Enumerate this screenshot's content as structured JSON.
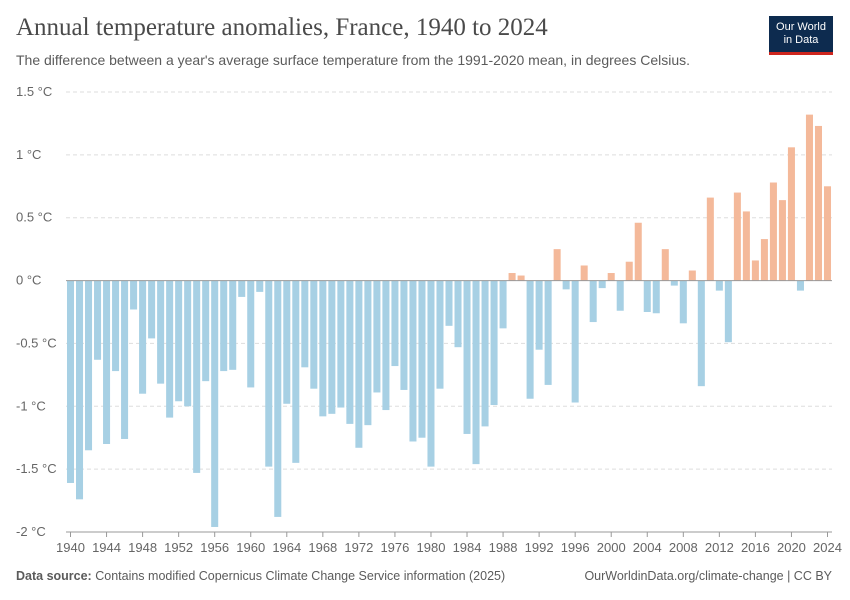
{
  "header": {
    "title": "Annual temperature anomalies, France, 1940 to 2024",
    "subtitle": "The difference between a year's average surface temperature from the 1991-2020 mean, in degrees Celsius."
  },
  "logo": {
    "line1": "Our World",
    "line2": "in Data"
  },
  "footer": {
    "source_label": "Data source:",
    "source_text": "Contains modified Copernicus Climate Change Service information (2025)",
    "right_text": "OurWorldinData.org/climate-change | CC BY"
  },
  "colors": {
    "negative": "#a7d0e4",
    "positive": "#f4b99a",
    "grid": "#dddddd",
    "zero": "#999999"
  },
  "chart_data": {
    "type": "bar",
    "title": "Annual temperature anomalies, France, 1940 to 2024",
    "ylim": [
      -2,
      1.5
    ],
    "yticks": [
      {
        "value": 1.5,
        "label": "1.5 °C"
      },
      {
        "value": 1,
        "label": "1 °C"
      },
      {
        "value": 0.5,
        "label": "0.5 °C"
      },
      {
        "value": 0,
        "label": "0 °C"
      },
      {
        "value": -0.5,
        "label": "-0.5 °C"
      },
      {
        "value": -1,
        "label": "-1 °C"
      },
      {
        "value": -1.5,
        "label": "-1.5 °C"
      },
      {
        "value": -2,
        "label": "-2 °C"
      }
    ],
    "xticks": [
      "1940",
      "1944",
      "1948",
      "1952",
      "1956",
      "1960",
      "1964",
      "1968",
      "1972",
      "1976",
      "1980",
      "1984",
      "1988",
      "1992",
      "1996",
      "2000",
      "2004",
      "2008",
      "2012",
      "2016",
      "2020",
      "2024"
    ],
    "grid": true,
    "x": [
      1940,
      1941,
      1942,
      1943,
      1944,
      1945,
      1946,
      1947,
      1948,
      1949,
      1950,
      1951,
      1952,
      1953,
      1954,
      1955,
      1956,
      1957,
      1958,
      1959,
      1960,
      1961,
      1962,
      1963,
      1964,
      1965,
      1966,
      1967,
      1968,
      1969,
      1970,
      1971,
      1972,
      1973,
      1974,
      1975,
      1976,
      1977,
      1978,
      1979,
      1980,
      1981,
      1982,
      1983,
      1984,
      1985,
      1986,
      1987,
      1988,
      1989,
      1990,
      1991,
      1992,
      1993,
      1994,
      1995,
      1996,
      1997,
      1998,
      1999,
      2000,
      2001,
      2002,
      2003,
      2004,
      2005,
      2006,
      2007,
      2008,
      2009,
      2010,
      2011,
      2012,
      2013,
      2014,
      2015,
      2016,
      2017,
      2018,
      2019,
      2020,
      2021,
      2022,
      2023,
      2024
    ],
    "values": [
      -1.61,
      -1.74,
      -1.35,
      -0.63,
      -1.3,
      -0.72,
      -1.26,
      -0.23,
      -0.9,
      -0.46,
      -0.82,
      -1.09,
      -0.96,
      -1.0,
      -1.53,
      -0.8,
      -1.96,
      -0.72,
      -0.71,
      -0.13,
      -0.85,
      -0.09,
      -1.48,
      -1.88,
      -0.98,
      -1.45,
      -0.69,
      -0.86,
      -1.08,
      -1.06,
      -1.01,
      -1.14,
      -1.33,
      -1.15,
      -0.89,
      -1.03,
      -0.68,
      -0.87,
      -1.28,
      -1.25,
      -1.48,
      -0.86,
      -0.36,
      -0.53,
      -1.22,
      -1.46,
      -1.16,
      -0.99,
      -0.38,
      0.06,
      0.04,
      -0.94,
      -0.55,
      -0.83,
      0.25,
      -0.07,
      -0.97,
      0.12,
      -0.33,
      -0.06,
      0.06,
      -0.24,
      0.15,
      0.46,
      -0.25,
      -0.26,
      0.25,
      -0.04,
      -0.34,
      0.08,
      -0.84,
      0.66,
      -0.08,
      -0.49,
      0.7,
      0.55,
      0.16,
      0.33,
      0.78,
      0.64,
      1.06,
      -0.08,
      1.32,
      1.23,
      0.75
    ]
  }
}
